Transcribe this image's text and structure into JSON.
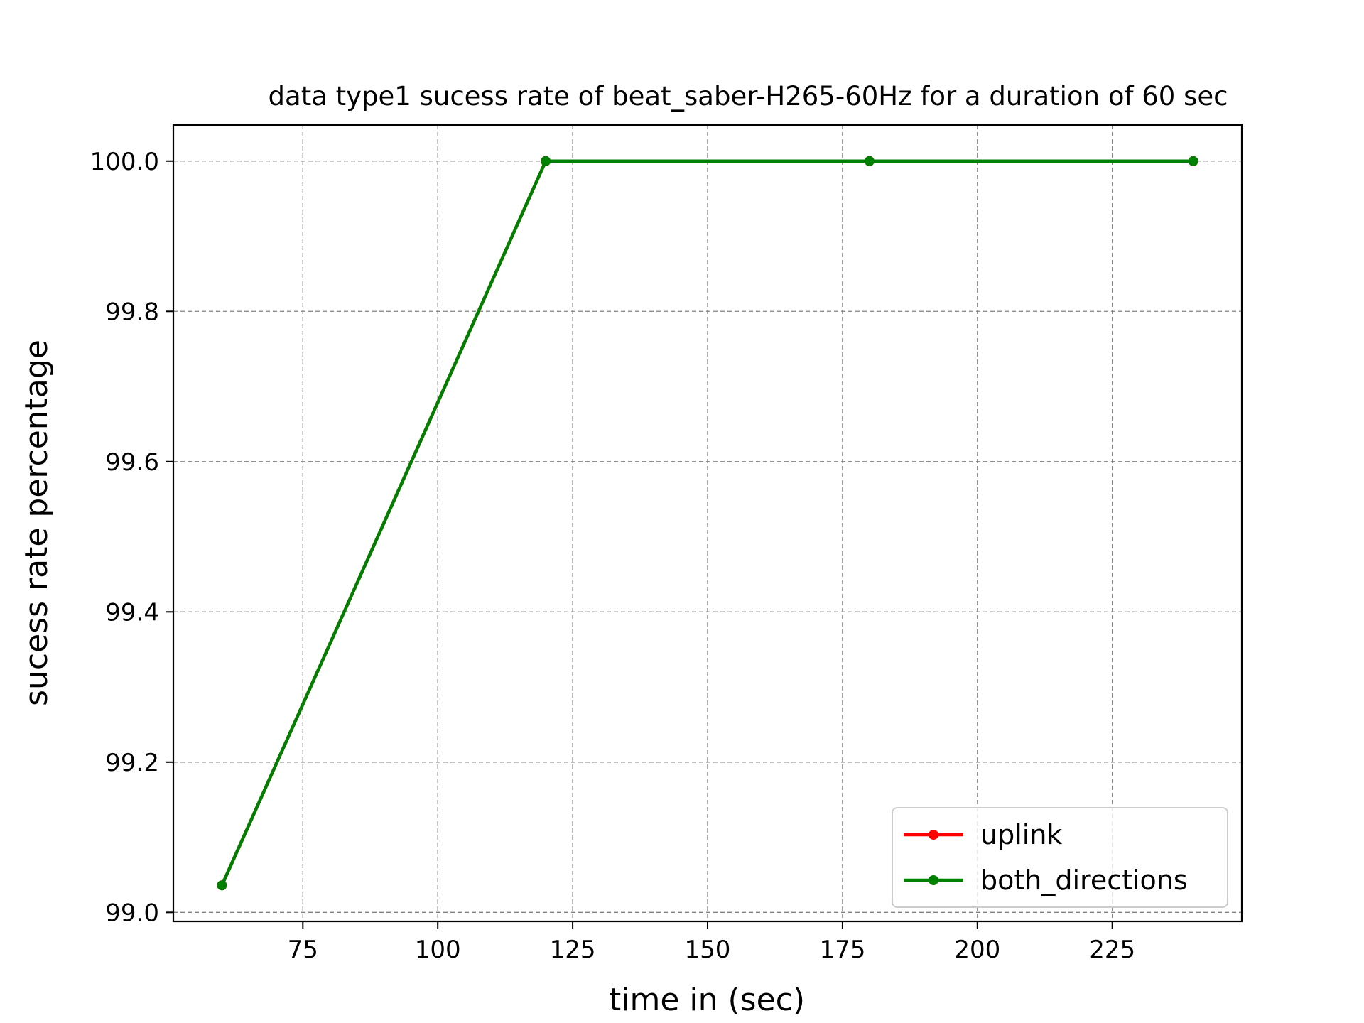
{
  "chart_data": {
    "type": "line",
    "title": "data type1 sucess rate of beat_saber-H265-60Hz for a duration of 60 sec",
    "xlabel": "time in (sec)",
    "ylabel": "sucess rate percentage",
    "x": [
      60,
      120,
      180,
      240
    ],
    "xlim": [
      51,
      249
    ],
    "ylim": [
      98.988,
      100.048
    ],
    "xticks": [
      75,
      100,
      125,
      150,
      175,
      200,
      225
    ],
    "xtick_labels": [
      "75",
      "100",
      "125",
      "150",
      "175",
      "200",
      "225"
    ],
    "yticks": [
      99.0,
      99.2,
      99.4,
      99.6,
      99.8,
      100.0
    ],
    "ytick_labels": [
      "99.0",
      "99.2",
      "99.4",
      "99.6",
      "99.8",
      "100.0"
    ],
    "grid": true,
    "legend_position": "lower-right",
    "series": [
      {
        "name": "uplink",
        "color": "#ff0000",
        "values": [
          99.036,
          100.0,
          100.0,
          100.0
        ]
      },
      {
        "name": "both_directions",
        "color": "#008000",
        "values": [
          99.036,
          100.0,
          100.0,
          100.0
        ]
      }
    ]
  }
}
